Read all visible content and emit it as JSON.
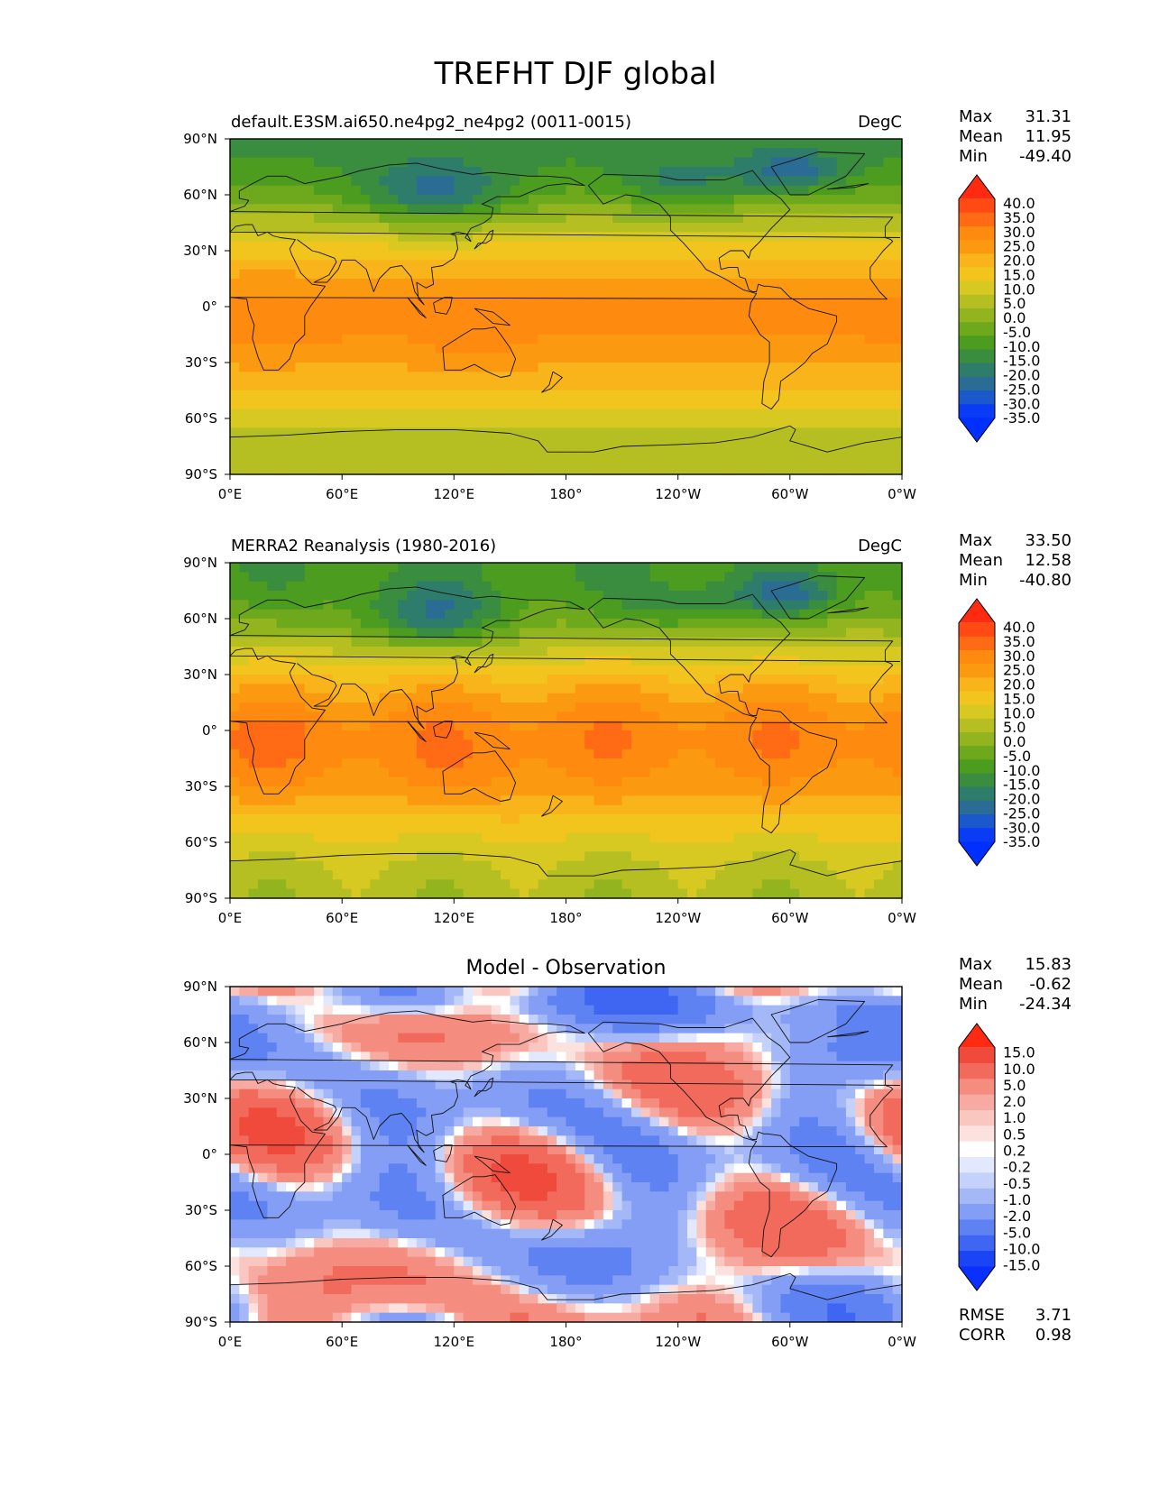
{
  "figure": {
    "title": "TREFHT DJF global"
  },
  "chart_data": [
    {
      "type": "heatmap",
      "title": "default.E3SM.ai650.ne4pg2_ne4pg2 (0011-0015)",
      "units": "DegC",
      "field": "model",
      "stats": {
        "max_label": "Max",
        "max": "31.31",
        "mean_label": "Mean",
        "mean": "11.95",
        "min_label": "Min",
        "min": "-49.40"
      },
      "xticks": [
        "0°E",
        "60°E",
        "120°E",
        "180°",
        "120°W",
        "60°W",
        "0°W"
      ],
      "yticks": [
        "90°N",
        "60°N",
        "30°N",
        "0°",
        "30°S",
        "60°S",
        "90°S"
      ],
      "xlim": [
        0,
        360
      ],
      "ylim": [
        -90,
        90
      ],
      "colorbar": {
        "levels": [
          "40.0",
          "35.0",
          "30.0",
          "25.0",
          "20.0",
          "15.0",
          "10.0",
          "5.0",
          "0.0",
          "-5.0",
          "-10.0",
          "-15.0",
          "-20.0",
          "-25.0",
          "-30.0",
          "-35.0"
        ],
        "colors": [
          "#ff2a0f",
          "#ff4a14",
          "#ff6a14",
          "#ff8a10",
          "#fb9a10",
          "#f8b41a",
          "#f2c41e",
          "#d8c822",
          "#b6bf22",
          "#92b41e",
          "#6ea81c",
          "#4c9c20",
          "#3a8c3e",
          "#2e7c6a",
          "#2a6c94",
          "#1a58cc",
          "#0a3cf6",
          "#0030ff"
        ]
      }
    },
    {
      "type": "heatmap",
      "title": "MERRA2 Reanalysis (1980-2016)",
      "units": "DegC",
      "field": "obs",
      "stats": {
        "max_label": "Max",
        "max": "33.50",
        "mean_label": "Mean",
        "mean": "12.58",
        "min_label": "Min",
        "min": "-40.80"
      },
      "xticks": [
        "0°E",
        "60°E",
        "120°E",
        "180°",
        "120°W",
        "60°W",
        "0°W"
      ],
      "yticks": [
        "90°N",
        "60°N",
        "30°N",
        "0°",
        "30°S",
        "60°S",
        "90°S"
      ],
      "xlim": [
        0,
        360
      ],
      "ylim": [
        -90,
        90
      ],
      "colorbar": {
        "levels": [
          "40.0",
          "35.0",
          "30.0",
          "25.0",
          "20.0",
          "15.0",
          "10.0",
          "5.0",
          "0.0",
          "-5.0",
          "-10.0",
          "-15.0",
          "-20.0",
          "-25.0",
          "-30.0",
          "-35.0"
        ],
        "colors": [
          "#ff2a0f",
          "#ff4a14",
          "#ff6a14",
          "#ff8a10",
          "#fb9a10",
          "#f8b41a",
          "#f2c41e",
          "#d8c822",
          "#b6bf22",
          "#92b41e",
          "#6ea81c",
          "#4c9c20",
          "#3a8c3e",
          "#2e7c6a",
          "#2a6c94",
          "#1a58cc",
          "#0a3cf6",
          "#0030ff"
        ]
      }
    },
    {
      "type": "heatmap",
      "title": "Model - Observation",
      "units": "",
      "field": "diff",
      "stats": {
        "max_label": "Max",
        "max": "15.83",
        "mean_label": "Mean",
        "mean": "-0.62",
        "min_label": "Min",
        "min": "-24.34"
      },
      "extra_stats": {
        "rmse_label": "RMSE",
        "rmse": "3.71",
        "corr_label": "CORR",
        "corr": "0.98"
      },
      "xticks": [
        "0°E",
        "60°E",
        "120°E",
        "180°",
        "120°W",
        "60°W",
        "0°W"
      ],
      "yticks": [
        "90°N",
        "60°N",
        "30°N",
        "0°",
        "30°S",
        "60°S",
        "90°S"
      ],
      "xlim": [
        0,
        360
      ],
      "ylim": [
        -90,
        90
      ],
      "colorbar": {
        "levels": [
          "15.0",
          "10.0",
          "5.0",
          "2.0",
          "1.0",
          "0.5",
          "0.2",
          "-0.2",
          "-0.5",
          "-1.0",
          "-2.0",
          "-5.0",
          "-10.0",
          "-15.0"
        ],
        "colors": [
          "#ff2a12",
          "#f04a3c",
          "#f26a5c",
          "#f48c80",
          "#f7aaa2",
          "#f9c6c0",
          "#fbe2de",
          "#ffffff",
          "#e2e8fd",
          "#c4d2fb",
          "#a4b8f8",
          "#849ef5",
          "#5f82f3",
          "#3f66f2",
          "#1a44f4",
          "#0a30ff"
        ]
      }
    }
  ]
}
